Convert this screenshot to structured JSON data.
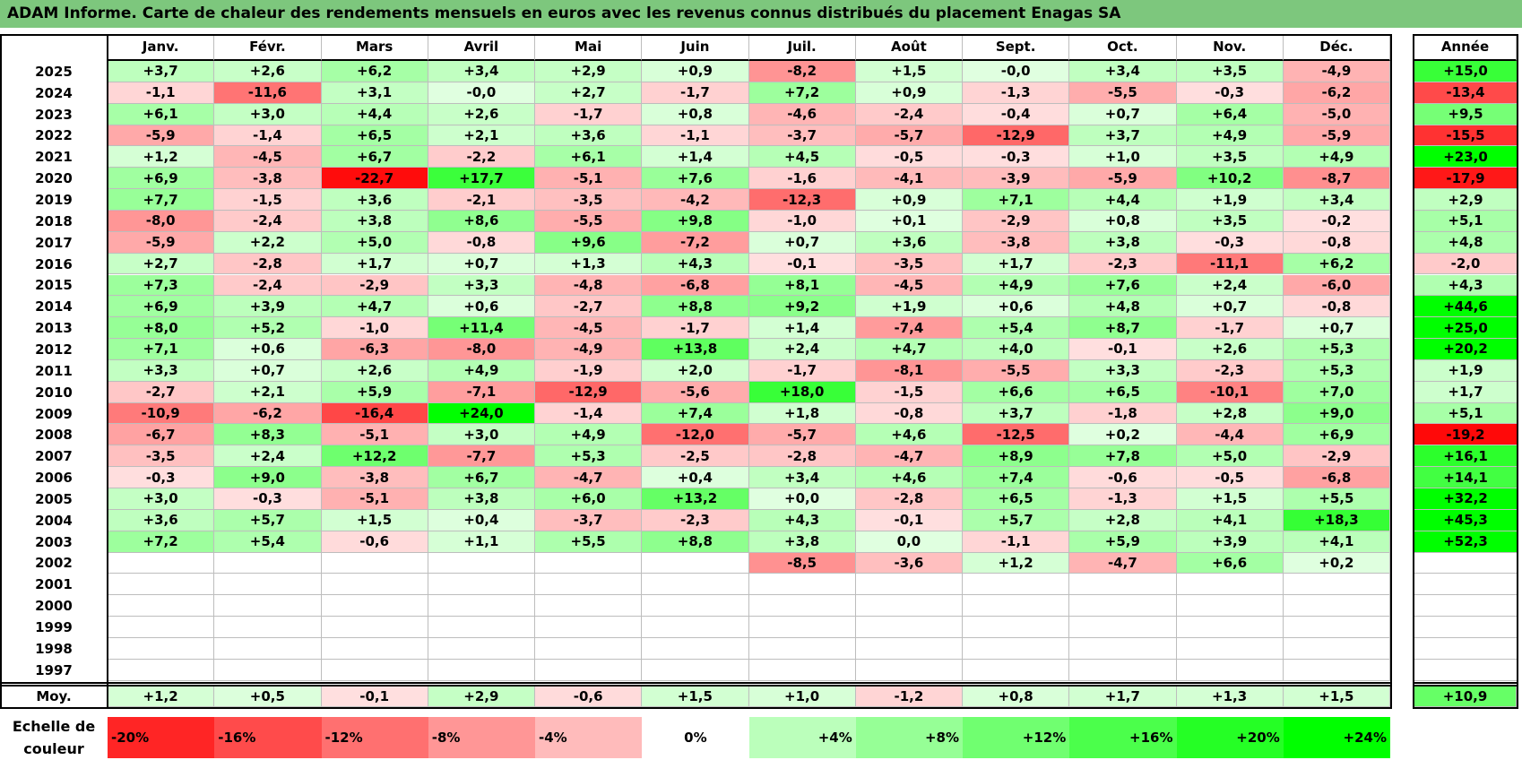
{
  "title": "ADAM Informe. Carte de chaleur des rendements mensuels en euros avec les revenus connus distribués du placement Enagas SA",
  "chart_data": {
    "type": "heatmap",
    "months": [
      "Janv.",
      "Févr.",
      "Mars",
      "Avril",
      "Mai",
      "Juin",
      "Juil.",
      "Août",
      "Sept.",
      "Oct.",
      "Nov.",
      "Déc."
    ],
    "year_header": "Année",
    "average_label": "Moy.",
    "rows": [
      {
        "year": "2025",
        "values": [
          3.7,
          2.6,
          6.2,
          3.4,
          2.9,
          0.9,
          -8.2,
          1.5,
          -0.0,
          3.4,
          3.5,
          -4.9
        ],
        "labels": [
          "+3,7",
          "+2,6",
          "+6,2",
          "+3,4",
          "+2,9",
          "+0,9",
          "-8,2",
          "+1,5",
          "-0,0",
          "+3,4",
          "+3,5",
          "-4,9"
        ],
        "annual": 15.0,
        "annual_label": "+15,0"
      },
      {
        "year": "2024",
        "values": [
          -1.1,
          -11.6,
          3.1,
          -0.0,
          2.7,
          -1.7,
          7.2,
          0.9,
          -1.3,
          -5.5,
          -0.3,
          -6.2
        ],
        "labels": [
          "-1,1",
          "-11,6",
          "+3,1",
          "-0,0",
          "+2,7",
          "-1,7",
          "+7,2",
          "+0,9",
          "-1,3",
          "-5,5",
          "-0,3",
          "-6,2"
        ],
        "annual": -13.4,
        "annual_label": "-13,4"
      },
      {
        "year": "2023",
        "values": [
          6.1,
          3.0,
          4.4,
          2.6,
          -1.7,
          0.8,
          -4.6,
          -2.4,
          -0.4,
          0.7,
          6.4,
          -5.0
        ],
        "labels": [
          "+6,1",
          "+3,0",
          "+4,4",
          "+2,6",
          "-1,7",
          "+0,8",
          "-4,6",
          "-2,4",
          "-0,4",
          "+0,7",
          "+6,4",
          "-5,0"
        ],
        "annual": 9.5,
        "annual_label": "+9,5"
      },
      {
        "year": "2022",
        "values": [
          -5.9,
          -1.4,
          6.5,
          2.1,
          3.6,
          -1.1,
          -3.7,
          -5.7,
          -12.9,
          3.7,
          4.9,
          -5.9
        ],
        "labels": [
          "-5,9",
          "-1,4",
          "+6,5",
          "+2,1",
          "+3,6",
          "-1,1",
          "-3,7",
          "-5,7",
          "-12,9",
          "+3,7",
          "+4,9",
          "-5,9"
        ],
        "annual": -15.5,
        "annual_label": "-15,5"
      },
      {
        "year": "2021",
        "values": [
          1.2,
          -4.5,
          6.7,
          -2.2,
          6.1,
          1.4,
          4.5,
          -0.5,
          -0.3,
          1.0,
          3.5,
          4.9
        ],
        "labels": [
          "+1,2",
          "-4,5",
          "+6,7",
          "-2,2",
          "+6,1",
          "+1,4",
          "+4,5",
          "-0,5",
          "-0,3",
          "+1,0",
          "+3,5",
          "+4,9"
        ],
        "annual": 23.0,
        "annual_label": "+23,0"
      },
      {
        "year": "2020",
        "values": [
          6.9,
          -3.8,
          -22.7,
          17.7,
          -5.1,
          7.6,
          -1.6,
          -4.1,
          -3.9,
          -5.9,
          10.2,
          -8.7
        ],
        "labels": [
          "+6,9",
          "-3,8",
          "-22,7",
          "+17,7",
          "-5,1",
          "+7,6",
          "-1,6",
          "-4,1",
          "-3,9",
          "-5,9",
          "+10,2",
          "-8,7"
        ],
        "annual": -17.9,
        "annual_label": "-17,9"
      },
      {
        "year": "2019",
        "values": [
          7.7,
          -1.5,
          3.6,
          -2.1,
          -3.5,
          -4.2,
          -12.3,
          0.9,
          7.1,
          4.4,
          1.9,
          3.4
        ],
        "labels": [
          "+7,7",
          "-1,5",
          "+3,6",
          "-2,1",
          "-3,5",
          "-4,2",
          "-12,3",
          "+0,9",
          "+7,1",
          "+4,4",
          "+1,9",
          "+3,4"
        ],
        "annual": 2.9,
        "annual_label": "+2,9"
      },
      {
        "year": "2018",
        "values": [
          -8.0,
          -2.4,
          3.8,
          8.6,
          -5.5,
          9.8,
          -1.0,
          0.1,
          -2.9,
          0.8,
          3.5,
          -0.2
        ],
        "labels": [
          "-8,0",
          "-2,4",
          "+3,8",
          "+8,6",
          "-5,5",
          "+9,8",
          "-1,0",
          "+0,1",
          "-2,9",
          "+0,8",
          "+3,5",
          "-0,2"
        ],
        "annual": 5.1,
        "annual_label": "+5,1"
      },
      {
        "year": "2017",
        "values": [
          -5.9,
          2.2,
          5.0,
          -0.8,
          9.6,
          -7.2,
          0.7,
          3.6,
          -3.8,
          3.8,
          -0.3,
          -0.8
        ],
        "labels": [
          "-5,9",
          "+2,2",
          "+5,0",
          "-0,8",
          "+9,6",
          "-7,2",
          "+0,7",
          "+3,6",
          "-3,8",
          "+3,8",
          "-0,3",
          "-0,8"
        ],
        "annual": 4.8,
        "annual_label": "+4,8"
      },
      {
        "year": "2016",
        "values": [
          2.7,
          -2.8,
          1.7,
          0.7,
          1.3,
          4.3,
          -0.1,
          -3.5,
          1.7,
          -2.3,
          -11.1,
          6.2
        ],
        "labels": [
          "+2,7",
          "-2,8",
          "+1,7",
          "+0,7",
          "+1,3",
          "+4,3",
          "-0,1",
          "-3,5",
          "+1,7",
          "-2,3",
          "-11,1",
          "+6,2"
        ],
        "annual": -2.0,
        "annual_label": "-2,0"
      },
      {
        "year": "2015",
        "values": [
          7.3,
          -2.4,
          -2.9,
          3.3,
          -4.8,
          -6.8,
          8.1,
          -4.5,
          4.9,
          7.6,
          2.4,
          -6.0
        ],
        "labels": [
          "+7,3",
          "-2,4",
          "-2,9",
          "+3,3",
          "-4,8",
          "-6,8",
          "+8,1",
          "-4,5",
          "+4,9",
          "+7,6",
          "+2,4",
          "-6,0"
        ],
        "annual": 4.3,
        "annual_label": "+4,3"
      },
      {
        "year": "2014",
        "values": [
          6.9,
          3.9,
          4.7,
          0.6,
          -2.7,
          8.8,
          9.2,
          1.9,
          0.6,
          4.8,
          0.7,
          -0.8
        ],
        "labels": [
          "+6,9",
          "+3,9",
          "+4,7",
          "+0,6",
          "-2,7",
          "+8,8",
          "+9,2",
          "+1,9",
          "+0,6",
          "+4,8",
          "+0,7",
          "-0,8"
        ],
        "annual": 44.6,
        "annual_label": "+44,6"
      },
      {
        "year": "2013",
        "values": [
          8.0,
          5.2,
          -1.0,
          11.4,
          -4.5,
          -1.7,
          1.4,
          -7.4,
          5.4,
          8.7,
          -1.7,
          0.7
        ],
        "labels": [
          "+8,0",
          "+5,2",
          "-1,0",
          "+11,4",
          "-4,5",
          "-1,7",
          "+1,4",
          "-7,4",
          "+5,4",
          "+8,7",
          "-1,7",
          "+0,7"
        ],
        "annual": 25.0,
        "annual_label": "+25,0"
      },
      {
        "year": "2012",
        "values": [
          7.1,
          0.6,
          -6.3,
          -8.0,
          -4.9,
          13.8,
          2.4,
          4.7,
          4.0,
          -0.1,
          2.6,
          5.3
        ],
        "labels": [
          "+7,1",
          "+0,6",
          "-6,3",
          "-8,0",
          "-4,9",
          "+13,8",
          "+2,4",
          "+4,7",
          "+4,0",
          "-0,1",
          "+2,6",
          "+5,3"
        ],
        "annual": 20.2,
        "annual_label": "+20,2"
      },
      {
        "year": "2011",
        "values": [
          3.3,
          0.7,
          2.6,
          4.9,
          -1.9,
          2.0,
          -1.7,
          -8.1,
          -5.5,
          3.3,
          -2.3,
          5.3
        ],
        "labels": [
          "+3,3",
          "+0,7",
          "+2,6",
          "+4,9",
          "-1,9",
          "+2,0",
          "-1,7",
          "-8,1",
          "-5,5",
          "+3,3",
          "-2,3",
          "+5,3"
        ],
        "annual": 1.9,
        "annual_label": "+1,9"
      },
      {
        "year": "2010",
        "values": [
          -2.7,
          2.1,
          5.9,
          -7.1,
          -12.9,
          -5.6,
          18.0,
          -1.5,
          6.6,
          6.5,
          -10.1,
          7.0
        ],
        "labels": [
          "-2,7",
          "+2,1",
          "+5,9",
          "-7,1",
          "-12,9",
          "-5,6",
          "+18,0",
          "-1,5",
          "+6,6",
          "+6,5",
          "-10,1",
          "+7,0"
        ],
        "annual": 1.7,
        "annual_label": "+1,7"
      },
      {
        "year": "2009",
        "values": [
          -10.9,
          -6.2,
          -16.4,
          24.0,
          -1.4,
          7.4,
          1.8,
          -0.8,
          3.7,
          -1.8,
          2.8,
          9.0
        ],
        "labels": [
          "-10,9",
          "-6,2",
          "-16,4",
          "+24,0",
          "-1,4",
          "+7,4",
          "+1,8",
          "-0,8",
          "+3,7",
          "-1,8",
          "+2,8",
          "+9,0"
        ],
        "annual": 5.1,
        "annual_label": "+5,1"
      },
      {
        "year": "2008",
        "values": [
          -6.7,
          8.3,
          -5.1,
          3.0,
          4.9,
          -12.0,
          -5.7,
          4.6,
          -12.5,
          0.2,
          -4.4,
          6.9
        ],
        "labels": [
          "-6,7",
          "+8,3",
          "-5,1",
          "+3,0",
          "+4,9",
          "-12,0",
          "-5,7",
          "+4,6",
          "-12,5",
          "+0,2",
          "-4,4",
          "+6,9"
        ],
        "annual": -19.2,
        "annual_label": "-19,2"
      },
      {
        "year": "2007",
        "values": [
          -3.5,
          2.4,
          12.2,
          -7.7,
          5.3,
          -2.5,
          -2.8,
          -4.7,
          8.9,
          7.8,
          5.0,
          -2.9
        ],
        "labels": [
          "-3,5",
          "+2,4",
          "+12,2",
          "-7,7",
          "+5,3",
          "-2,5",
          "-2,8",
          "-4,7",
          "+8,9",
          "+7,8",
          "+5,0",
          "-2,9"
        ],
        "annual": 16.1,
        "annual_label": "+16,1"
      },
      {
        "year": "2006",
        "values": [
          -0.3,
          9.0,
          -3.8,
          6.7,
          -4.7,
          0.4,
          3.4,
          4.6,
          7.4,
          -0.6,
          -0.5,
          -6.8
        ],
        "labels": [
          "-0,3",
          "+9,0",
          "-3,8",
          "+6,7",
          "-4,7",
          "+0,4",
          "+3,4",
          "+4,6",
          "+7,4",
          "-0,6",
          "-0,5",
          "-6,8"
        ],
        "annual": 14.1,
        "annual_label": "+14,1"
      },
      {
        "year": "2005",
        "values": [
          3.0,
          -0.3,
          -5.1,
          3.8,
          6.0,
          13.2,
          0.0,
          -2.8,
          6.5,
          -1.3,
          1.5,
          5.5
        ],
        "labels": [
          "+3,0",
          "-0,3",
          "-5,1",
          "+3,8",
          "+6,0",
          "+13,2",
          "+0,0",
          "-2,8",
          "+6,5",
          "-1,3",
          "+1,5",
          "+5,5"
        ],
        "annual": 32.2,
        "annual_label": "+32,2"
      },
      {
        "year": "2004",
        "values": [
          3.6,
          5.7,
          1.5,
          0.4,
          -3.7,
          -2.3,
          4.3,
          -0.1,
          5.7,
          2.8,
          4.1,
          18.3
        ],
        "labels": [
          "+3,6",
          "+5,7",
          "+1,5",
          "+0,4",
          "-3,7",
          "-2,3",
          "+4,3",
          "-0,1",
          "+5,7",
          "+2,8",
          "+4,1",
          "+18,3"
        ],
        "annual": 45.3,
        "annual_label": "+45,3"
      },
      {
        "year": "2003",
        "values": [
          7.2,
          5.4,
          -0.6,
          1.1,
          5.5,
          8.8,
          3.8,
          0.0,
          -1.1,
          5.9,
          3.9,
          4.1
        ],
        "labels": [
          "+7,2",
          "+5,4",
          "-0,6",
          "+1,1",
          "+5,5",
          "+8,8",
          "+3,8",
          "0,0",
          "-1,1",
          "+5,9",
          "+3,9",
          "+4,1"
        ],
        "annual": 52.3,
        "annual_label": "+52,3"
      },
      {
        "year": "2002",
        "values": [
          null,
          null,
          null,
          null,
          null,
          null,
          -8.5,
          -3.6,
          1.2,
          -4.7,
          6.6,
          0.2
        ],
        "labels": [
          "",
          "",
          "",
          "",
          "",
          "",
          "-8,5",
          "-3,6",
          "+1,2",
          "-4,7",
          "+6,6",
          "+0,2"
        ],
        "annual": null,
        "annual_label": ""
      },
      {
        "year": "2001",
        "values": [
          null,
          null,
          null,
          null,
          null,
          null,
          null,
          null,
          null,
          null,
          null,
          null
        ],
        "labels": [
          "",
          "",
          "",
          "",
          "",
          "",
          "",
          "",
          "",
          "",
          "",
          ""
        ],
        "annual": null,
        "annual_label": ""
      },
      {
        "year": "2000",
        "values": [
          null,
          null,
          null,
          null,
          null,
          null,
          null,
          null,
          null,
          null,
          null,
          null
        ],
        "labels": [
          "",
          "",
          "",
          "",
          "",
          "",
          "",
          "",
          "",
          "",
          "",
          ""
        ],
        "annual": null,
        "annual_label": ""
      },
      {
        "year": "1999",
        "values": [
          null,
          null,
          null,
          null,
          null,
          null,
          null,
          null,
          null,
          null,
          null,
          null
        ],
        "labels": [
          "",
          "",
          "",
          "",
          "",
          "",
          "",
          "",
          "",
          "",
          "",
          ""
        ],
        "annual": null,
        "annual_label": ""
      },
      {
        "year": "1998",
        "values": [
          null,
          null,
          null,
          null,
          null,
          null,
          null,
          null,
          null,
          null,
          null,
          null
        ],
        "labels": [
          "",
          "",
          "",
          "",
          "",
          "",
          "",
          "",
          "",
          "",
          "",
          ""
        ],
        "annual": null,
        "annual_label": ""
      },
      {
        "year": "1997",
        "values": [
          null,
          null,
          null,
          null,
          null,
          null,
          null,
          null,
          null,
          null,
          null,
          null
        ],
        "labels": [
          "",
          "",
          "",
          "",
          "",
          "",
          "",
          "",
          "",
          "",
          "",
          ""
        ],
        "annual": null,
        "annual_label": ""
      }
    ],
    "average": {
      "values": [
        1.2,
        0.5,
        -0.1,
        2.9,
        -0.6,
        1.5,
        1.0,
        -1.2,
        0.8,
        1.7,
        1.3,
        1.5
      ],
      "labels": [
        "+1,2",
        "+0,5",
        "-0,1",
        "+2,9",
        "-0,6",
        "+1,5",
        "+1,0",
        "-1,2",
        "+0,8",
        "+1,7",
        "+1,3",
        "+1,5"
      ],
      "annual": 10.9,
      "annual_label": "+10,9"
    },
    "color_scale": {
      "label_line1": "Echelle de",
      "label_line2": "couleur",
      "stops": [
        {
          "value": -20,
          "label": "-20%"
        },
        {
          "value": -16,
          "label": "-16%"
        },
        {
          "value": -12,
          "label": "-12%"
        },
        {
          "value": -8,
          "label": "-8%"
        },
        {
          "value": -4,
          "label": "-4%"
        },
        {
          "value": 0,
          "label": "0%"
        },
        {
          "value": 4,
          "label": "+4%"
        },
        {
          "value": 8,
          "label": "+8%"
        },
        {
          "value": 12,
          "label": "+12%"
        },
        {
          "value": 16,
          "label": "+16%"
        },
        {
          "value": 20,
          "label": "+20%"
        },
        {
          "value": 24,
          "label": "+24%"
        }
      ],
      "negative_color": "#ff0000",
      "positive_color": "#00ff00",
      "neutral_color": "#ffffff"
    }
  }
}
